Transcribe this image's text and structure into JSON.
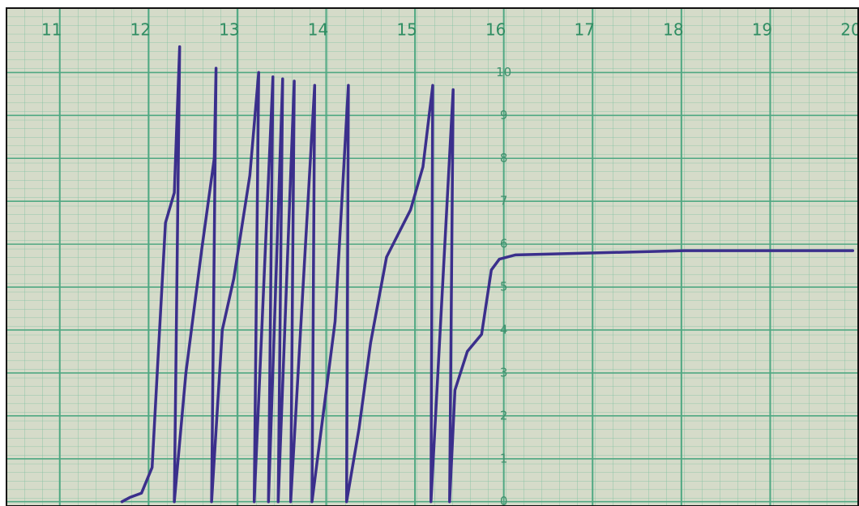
{
  "chart_data": {
    "type": "line",
    "x": [
      11.7,
      11.79,
      11.92,
      12.04,
      12.1,
      12.19,
      12.29,
      12.35,
      12.29,
      12.42,
      12.6,
      12.74,
      12.76,
      12.71,
      12.83,
      12.96,
      13.14,
      13.24,
      13.19,
      13.4,
      13.35,
      13.51,
      13.46,
      13.64,
      13.6,
      13.87,
      13.84,
      14.1,
      14.25,
      14.23,
      14.37,
      14.5,
      14.68,
      14.95,
      15.09,
      15.2,
      15.18,
      15.43,
      15.39,
      15.45,
      15.59,
      15.75,
      15.86,
      15.95,
      16.13,
      18.03,
      19.93
    ],
    "series": [
      {
        "color": "#3b2f8c",
        "values": [
          0,
          0.1,
          0.2,
          0.8,
          3.1,
          6.5,
          7.2,
          10.6,
          0,
          3.0,
          5.9,
          8.0,
          10.1,
          0,
          4.0,
          5.2,
          7.6,
          10.0,
          0,
          9.9,
          0,
          9.85,
          0,
          9.8,
          0,
          9.7,
          0,
          4.2,
          9.7,
          0,
          1.7,
          3.7,
          5.7,
          6.8,
          7.8,
          9.7,
          0,
          9.6,
          0,
          2.6,
          3.5,
          3.9,
          5.4,
          5.65,
          5.75,
          5.85,
          5.85
        ]
      }
    ],
    "xlim": [
      10.4,
      20.0
    ],
    "xticks": [
      11,
      12,
      13,
      14,
      15,
      16,
      17,
      18,
      19,
      20
    ],
    "ylim": [
      -0.1,
      11.5
    ],
    "yticks": [
      0,
      1,
      2,
      3,
      4,
      5,
      6,
      7,
      8,
      9,
      10
    ],
    "y_axis_at": 16,
    "grid": true,
    "grid_color": "#4fa882",
    "paper_color": "#d5dbc9"
  }
}
